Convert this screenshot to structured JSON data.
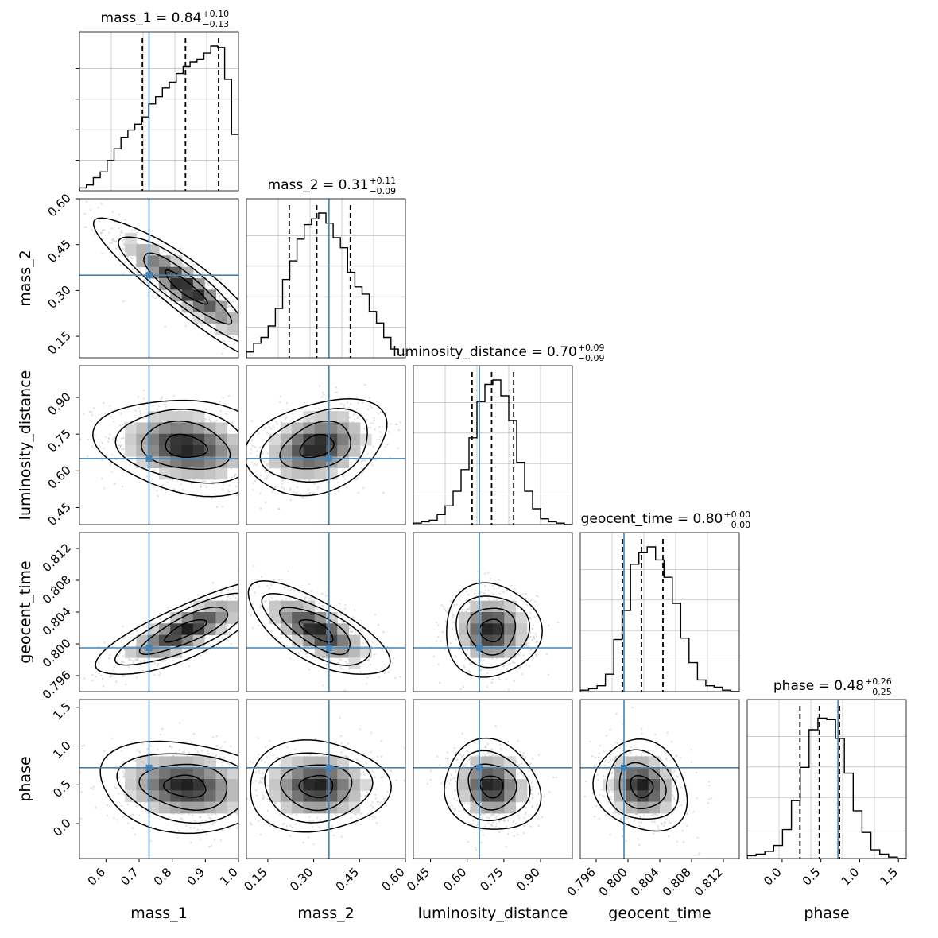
{
  "chart_data": {
    "type": "corner",
    "parameters": [
      {
        "name": "mass_1",
        "label": "mass_1",
        "range": [
          0.52,
          1.0
        ],
        "ticks": [
          "0.6",
          "0.7",
          "0.8",
          "0.9",
          "1.0"
        ],
        "tickvals": [
          0.6,
          0.7,
          0.8,
          0.9,
          1.0
        ],
        "truth": 0.73,
        "quantiles": [
          0.71,
          0.84,
          0.94
        ],
        "title_value": "0.84",
        "title_plus": "+0.10",
        "title_minus": "−0.13"
      },
      {
        "name": "mass_2",
        "label": "mass_2",
        "range": [
          0.08,
          0.6
        ],
        "ticks": [
          "0.15",
          "0.30",
          "0.45",
          "0.60"
        ],
        "tickvals": [
          0.15,
          0.3,
          0.45,
          0.6
        ],
        "truth": 0.35,
        "quantiles": [
          0.22,
          0.31,
          0.42
        ],
        "title_value": "0.31",
        "title_plus": "+0.11",
        "title_minus": "−0.09"
      },
      {
        "name": "luminosity_distance",
        "label": "luminosity_distance",
        "range": [
          0.38,
          1.03
        ],
        "ticks": [
          "0.45",
          "0.60",
          "0.75",
          "0.90"
        ],
        "tickvals": [
          0.45,
          0.6,
          0.75,
          0.9
        ],
        "truth": 0.65,
        "quantiles": [
          0.62,
          0.7,
          0.79
        ],
        "title_value": "0.70",
        "title_plus": "+0.09",
        "title_minus": "−0.09"
      },
      {
        "name": "geocent_time",
        "label": "geocent_time",
        "range": [
          0.794,
          0.814
        ],
        "ticks": [
          "0.796",
          "0.800",
          "0.804",
          "0.808",
          "0.812"
        ],
        "tickvals": [
          0.796,
          0.8,
          0.804,
          0.808,
          0.812
        ],
        "truth": 0.7995,
        "quantiles": [
          0.7993,
          0.8017,
          0.8044
        ],
        "title_value": "0.80",
        "title_plus": "+0.00",
        "title_minus": "−0.00"
      },
      {
        "name": "phase",
        "label": "phase",
        "range": [
          -0.45,
          1.6
        ],
        "ticks": [
          "0.0",
          "0.5",
          "1.0",
          "1.5"
        ],
        "tickvals": [
          0.0,
          0.5,
          1.0,
          1.5
        ],
        "truth": 0.72,
        "quantiles": [
          0.23,
          0.48,
          0.74
        ],
        "title_value": "0.48",
        "title_plus": "+0.26",
        "title_minus": "−0.25"
      }
    ],
    "histograms": [
      [
        0.02,
        0.04,
        0.09,
        0.13,
        0.21,
        0.29,
        0.37,
        0.42,
        0.46,
        0.51,
        0.6,
        0.65,
        0.71,
        0.75,
        0.81,
        0.86,
        0.89,
        0.91,
        0.95,
        1.0,
        0.99,
        0.77,
        0.39
      ],
      [
        0.04,
        0.1,
        0.14,
        0.22,
        0.34,
        0.54,
        0.67,
        0.82,
        0.92,
        0.96,
        1.0,
        0.93,
        0.83,
        0.76,
        0.59,
        0.49,
        0.44,
        0.32,
        0.24,
        0.14,
        0.06,
        0.02
      ],
      [
        0.01,
        0.02,
        0.03,
        0.07,
        0.13,
        0.23,
        0.38,
        0.6,
        0.85,
        0.97,
        1.0,
        0.89,
        0.72,
        0.43,
        0.23,
        0.11,
        0.04,
        0.02,
        0.01,
        0.0
      ],
      [
        0.01,
        0.02,
        0.04,
        0.12,
        0.36,
        0.56,
        0.88,
        0.96,
        1.0,
        0.91,
        0.79,
        0.61,
        0.37,
        0.2,
        0.08,
        0.04,
        0.03,
        0.01,
        0.0
      ],
      [
        0.02,
        0.03,
        0.05,
        0.09,
        0.2,
        0.4,
        0.63,
        0.89,
        0.97,
        0.96,
        0.83,
        0.59,
        0.33,
        0.18,
        0.06,
        0.03,
        0.01,
        0.0
      ]
    ],
    "colors": {
      "truth": "#4682b4",
      "contour": "#000000",
      "hist": "#000000",
      "grid": "#b0b0b0"
    }
  }
}
